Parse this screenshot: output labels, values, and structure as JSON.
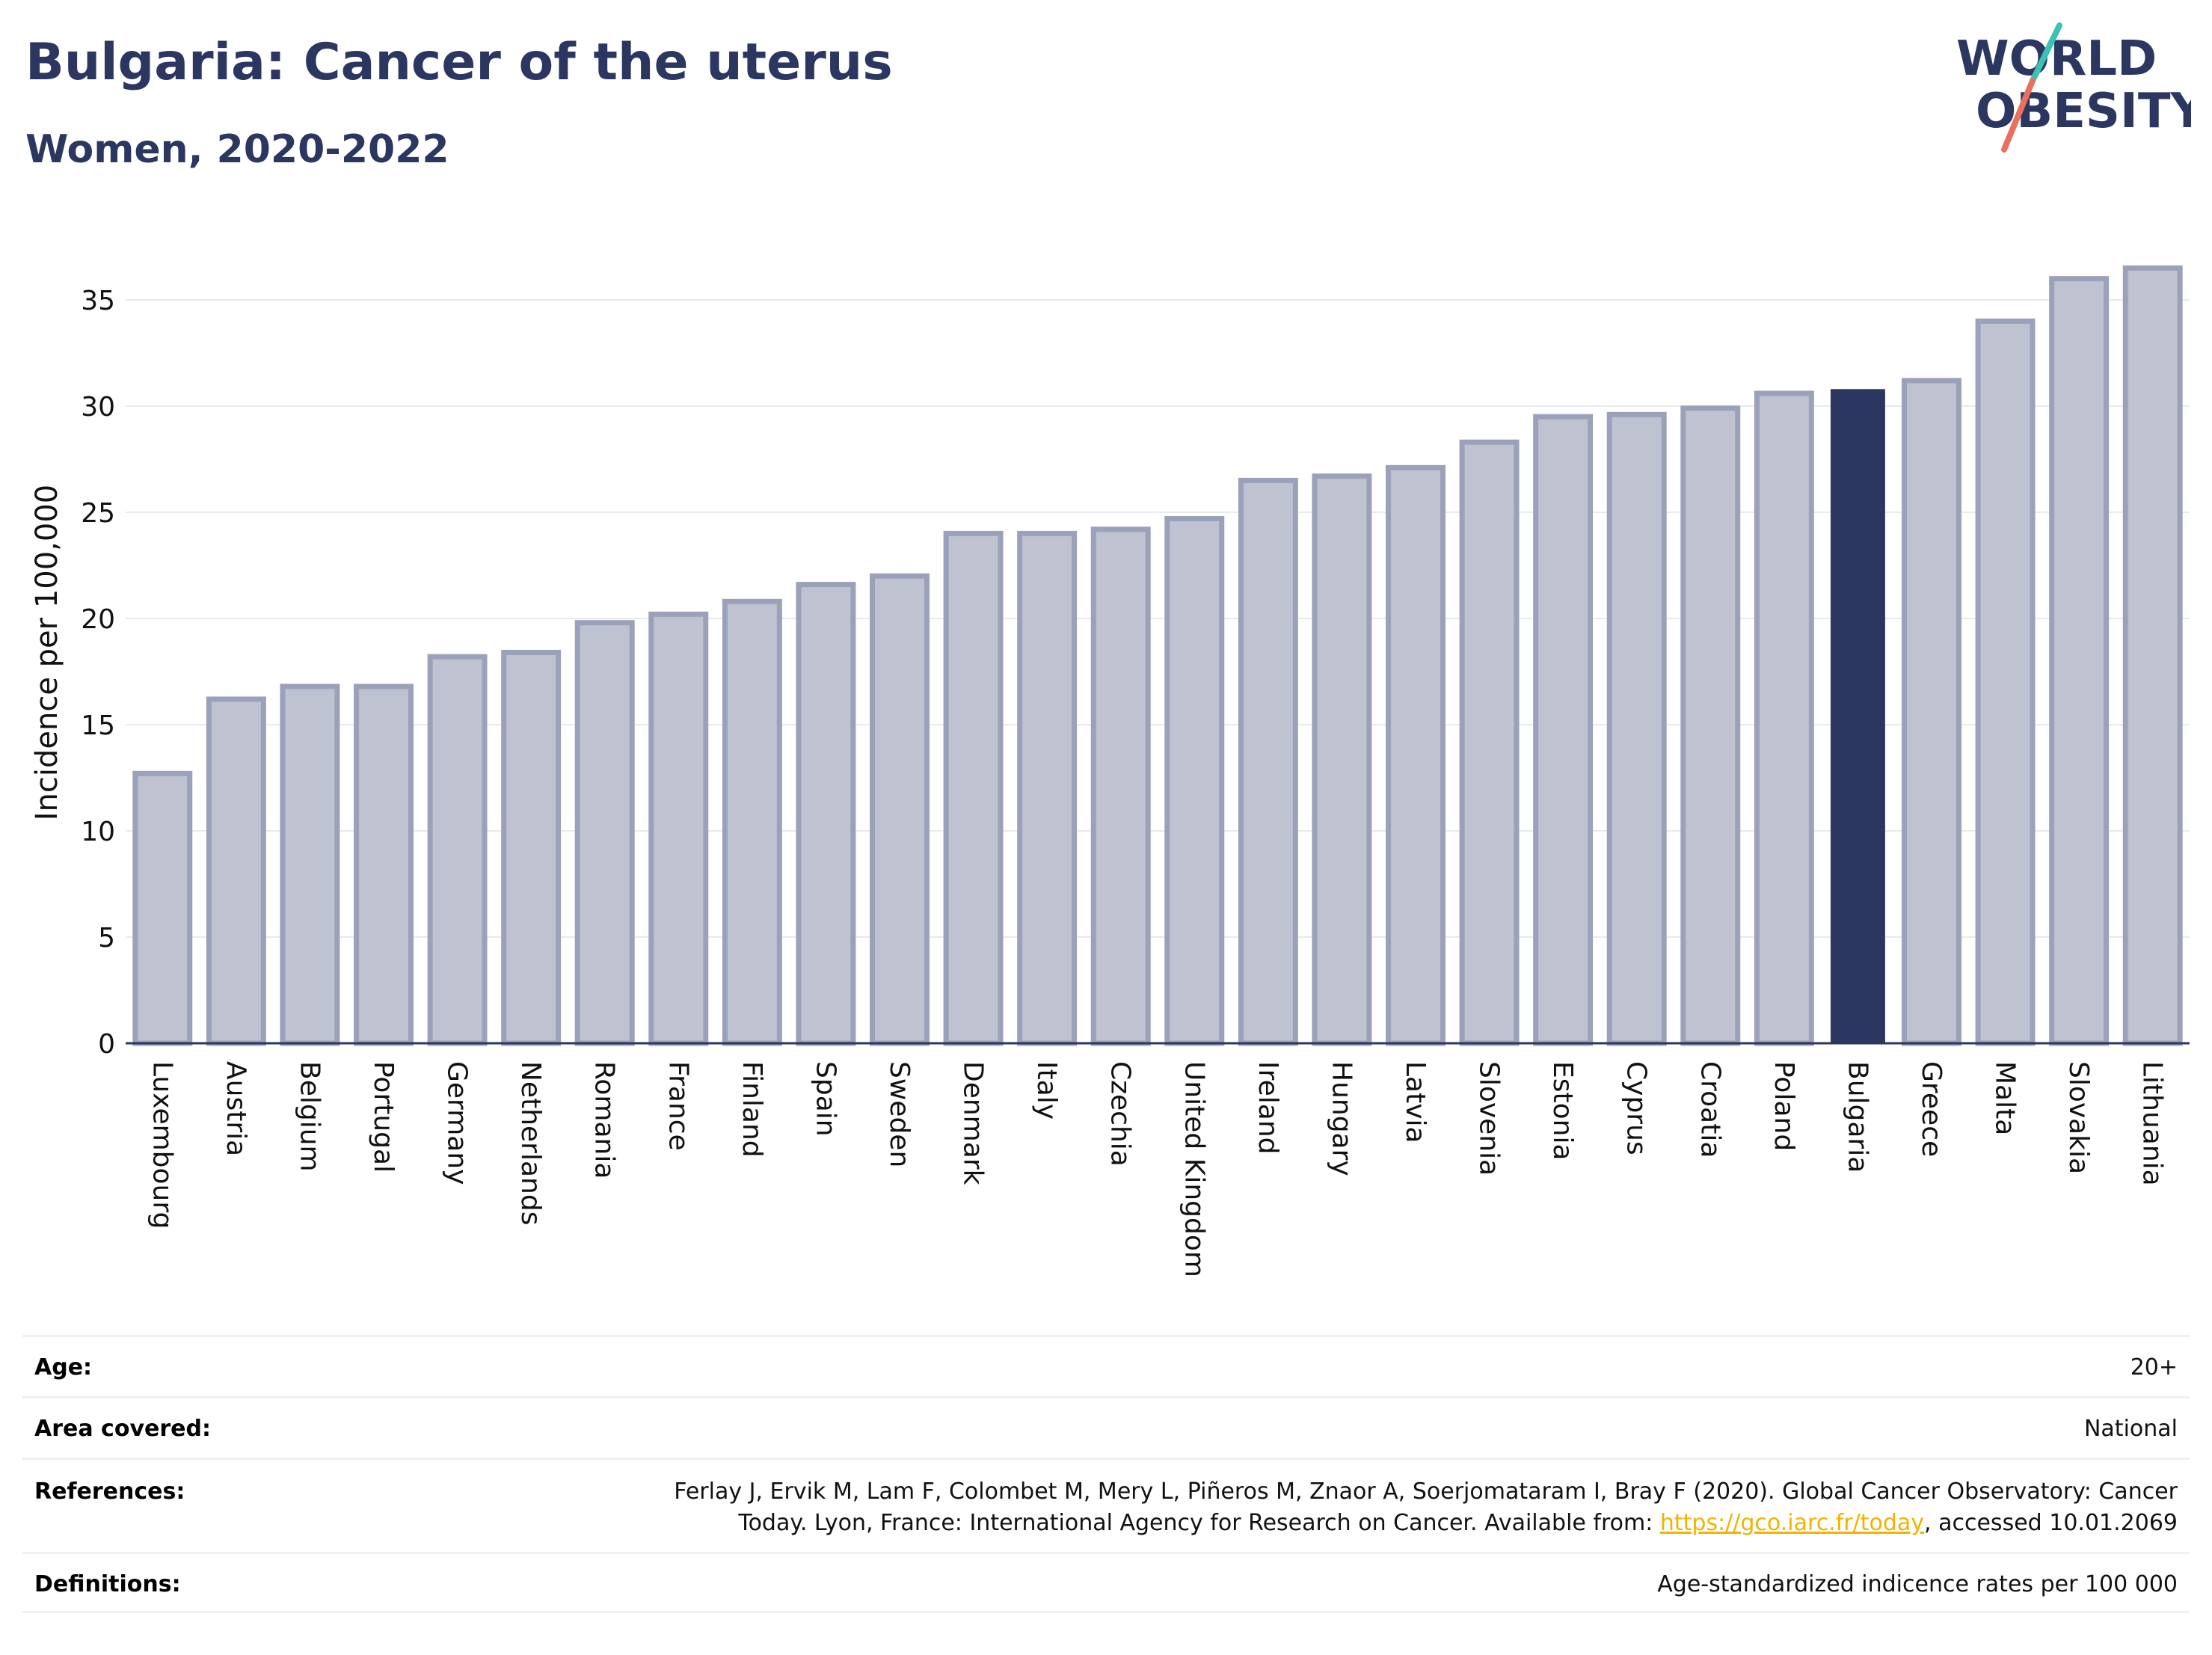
{
  "header": {
    "title": "Bulgaria: Cancer of the uterus",
    "subtitle": "Women, 2020-2022"
  },
  "logo": {
    "line1": "WORLD",
    "line2": "OBESITY",
    "slash_colors": [
      "#3cc1b5",
      "#e8705f"
    ],
    "text_color": "#2b3661"
  },
  "chart_data": {
    "type": "bar",
    "title": "Bulgaria: Cancer of the uterus",
    "subtitle": "Women, 2020-2022",
    "ylabel": "Incidence per 100,000",
    "xlabel": "",
    "ylim": [
      0,
      37.5
    ],
    "yticks": [
      0,
      5,
      10,
      15,
      20,
      25,
      30,
      35
    ],
    "grid": true,
    "legend": "none",
    "highlight": "Bulgaria",
    "colors": {
      "bar": "#bfc2d0",
      "bar_edge": "#9ba1b9",
      "highlight": "#2b3661",
      "axis": "#2b3661"
    },
    "categories": [
      "Luxembourg",
      "Austria",
      "Belgium",
      "Portugal",
      "Germany",
      "Netherlands",
      "Romania",
      "France",
      "Finland",
      "Spain",
      "Sweden",
      "Denmark",
      "Italy",
      "Czechia",
      "United Kingdom",
      "Ireland",
      "Hungary",
      "Latvia",
      "Slovenia",
      "Estonia",
      "Cyprus",
      "Croatia",
      "Poland",
      "Bulgaria",
      "Greece",
      "Malta",
      "Slovakia",
      "Lithuania"
    ],
    "values": [
      12.7,
      16.2,
      16.8,
      16.8,
      18.2,
      18.4,
      19.8,
      20.2,
      20.8,
      21.6,
      22.0,
      24.0,
      24.0,
      24.2,
      24.7,
      26.5,
      26.7,
      27.1,
      28.3,
      29.5,
      29.6,
      29.9,
      30.6,
      30.8,
      31.2,
      34.0,
      36.0,
      36.5
    ]
  },
  "meta": [
    {
      "label": "Age:",
      "value": "20+"
    },
    {
      "label": "Area covered:",
      "value": "National"
    },
    {
      "label": "References:",
      "value_line1": "Ferlay J, Ervik M, Lam F, Colombet M, Mery L, Piñeros M, Znaor A, Soerjomataram I, Bray F (2020). Global Cancer Observatory: Cancer",
      "value_line2_pre": "Today. Lyon, France: International Agency for Research on Cancer. Available from: ",
      "link": "https://gco.iarc.fr/today",
      "value_line2_post": ", accessed 10.01.2069"
    },
    {
      "label": "Definitions:",
      "value": "Age-standardized indicence rates per 100 000"
    }
  ]
}
